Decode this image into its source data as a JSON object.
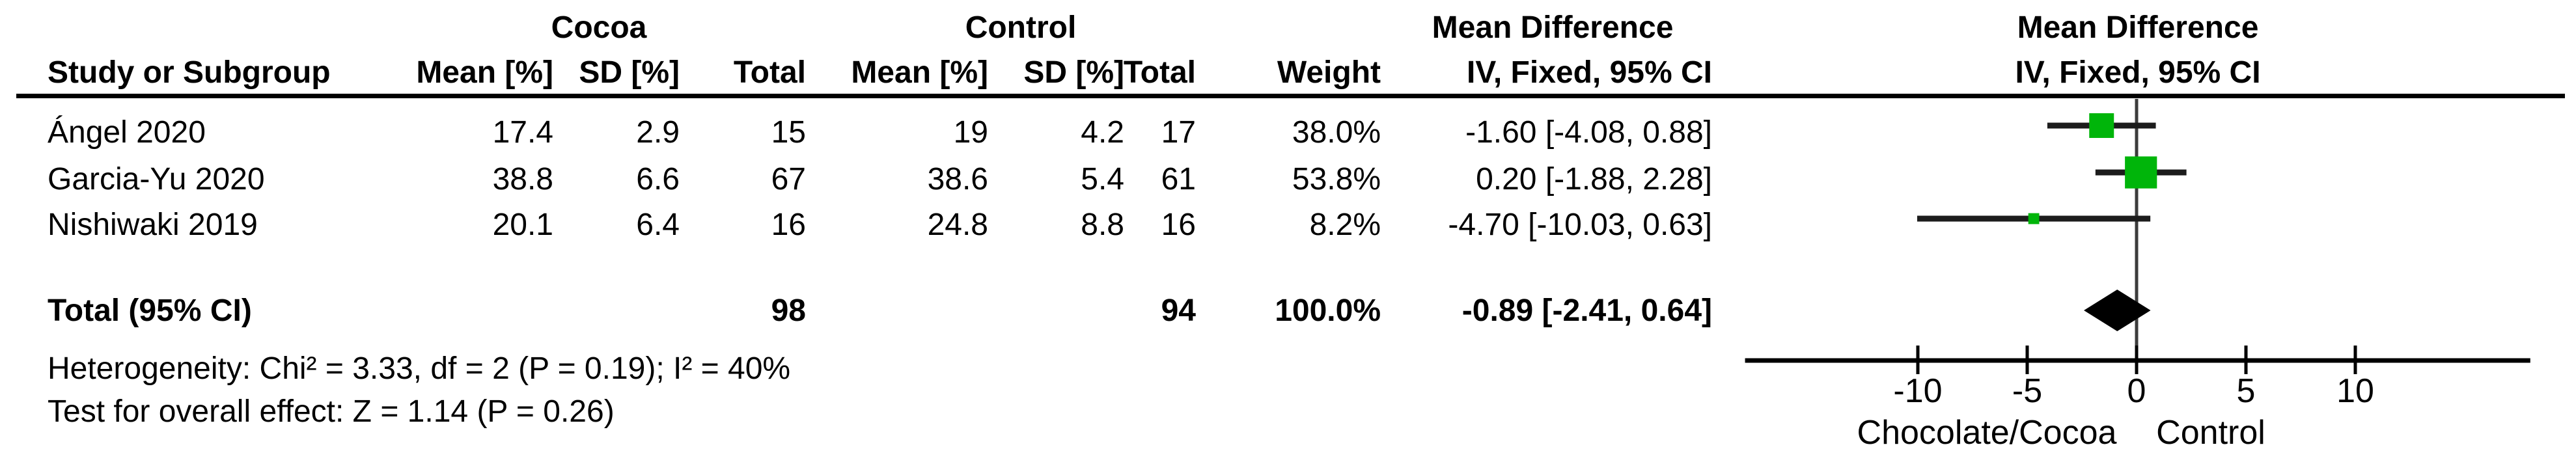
{
  "header": {
    "group_cocoa": "Cocoa",
    "group_control": "Control",
    "group_mean_difference": "Mean Difference",
    "plot_mean_difference": "Mean Difference",
    "col_study": "Study or Subgroup",
    "col_cocoa_mean": "Mean [%]",
    "col_cocoa_sd": "SD [%]",
    "col_cocoa_total": "Total",
    "col_control_mean": "Mean [%]",
    "col_control_sd": "SD [%]",
    "col_control_total": "Total",
    "col_weight": "Weight",
    "col_ci": "IV, Fixed, 95% CI",
    "plot_col_ci": "IV, Fixed, 95% CI"
  },
  "rows": [
    {
      "study": "Ángel 2020",
      "cocoa_mean": "17.4",
      "cocoa_sd": "2.9",
      "cocoa_total": "15",
      "control_mean": "19",
      "control_sd": "4.2",
      "control_total": "17",
      "weight": "38.0%",
      "ci_text": "-1.60 [-4.08, 0.88]"
    },
    {
      "study": "Garcia-Yu 2020",
      "cocoa_mean": "38.8",
      "cocoa_sd": "6.6",
      "cocoa_total": "67",
      "control_mean": "38.6",
      "control_sd": "5.4",
      "control_total": "61",
      "weight": "53.8%",
      "ci_text": "0.20 [-1.88, 2.28]"
    },
    {
      "study": "Nishiwaki 2019",
      "cocoa_mean": "20.1",
      "cocoa_sd": "6.4",
      "cocoa_total": "16",
      "control_mean": "24.8",
      "control_sd": "8.8",
      "control_total": "16",
      "weight": "8.2%",
      "ci_text": "-4.70 [-10.03, 0.63]"
    }
  ],
  "total": {
    "label": "Total (95% CI)",
    "cocoa_total": "98",
    "control_total": "94",
    "weight": "100.0%",
    "ci_text": "-0.89 [-2.41, 0.64]"
  },
  "footer": {
    "heterogeneity": "Heterogeneity: Chi² = 3.33, df = 2 (P = 0.19); I² = 40%",
    "overall_effect": "Test for overall effect: Z = 1.14 (P = 0.26)"
  },
  "chart_data": {
    "type": "forest",
    "effect_measure": "Mean Difference",
    "method": "IV, Fixed, 95% CI",
    "studies": [
      {
        "name": "Ángel 2020",
        "md": -1.6,
        "ci_low": -4.08,
        "ci_high": 0.88,
        "weight_pct": 38.0
      },
      {
        "name": "Garcia-Yu 2020",
        "md": 0.2,
        "ci_low": -1.88,
        "ci_high": 2.28,
        "weight_pct": 53.8
      },
      {
        "name": "Nishiwaki 2019",
        "md": -4.7,
        "ci_low": -10.03,
        "ci_high": 0.63,
        "weight_pct": 8.2
      }
    ],
    "total": {
      "label": "Total (95% CI)",
      "md": -0.89,
      "ci_low": -2.41,
      "ci_high": 0.64,
      "weight_pct": 100.0
    },
    "x_ticks": [
      -10,
      -5,
      0,
      5,
      10
    ],
    "xlim": [
      -17.9,
      18.0
    ],
    "favours_left": "Chocolate/Cocoa",
    "favours_right": "Control",
    "marker_color": "#00B50A",
    "line_color": "#1c1c1c",
    "diamond_color": "#000000",
    "zero_line_color": "#3c3c3c"
  }
}
